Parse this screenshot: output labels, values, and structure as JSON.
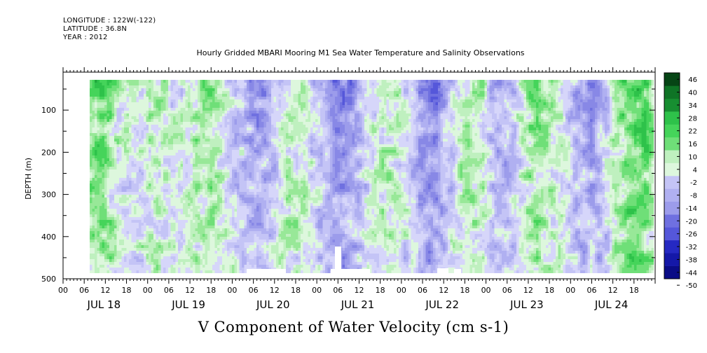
{
  "header": {
    "longitude": "LONGITUDE : 122W(-122)",
    "latitude": "LATITUDE : 36.8N",
    "year": "YEAR : 2012"
  },
  "colors": {
    "positive": [
      "#ddf7dd",
      "#bff0bf",
      "#98e898",
      "#6fdf78",
      "#45d45a",
      "#2ec24a",
      "#20a83c",
      "#178e31",
      "#0f7426",
      "#0a5c1d",
      "#064515"
    ],
    "negative": [
      "#d6d6fa",
      "#c4c4f6",
      "#b0b0f1",
      "#9c9ceb",
      "#8888e6",
      "#6f70e0",
      "#5557da",
      "#3b3ed0",
      "#2529c2",
      "#1418a8",
      "#0a0c86",
      "#04045c"
    ]
  },
  "chart_data": {
    "type": "heatmap",
    "title": "Hourly Gridded MBARI Mooring M1 Sea Water Temperature and Salinity Observations",
    "xlabel": "V Component of Water Velocity (cm s-1)",
    "ylabel": "DEPTH (m)",
    "y_reversed": true,
    "ylim": [
      500,
      10
    ],
    "y_ticks": [
      100,
      200,
      300,
      400,
      500
    ],
    "y_data_range": [
      15,
      485
    ],
    "x_day_labels": [
      "JUL 18",
      "JUL 19",
      "JUL 20",
      "JUL 21",
      "JUL 22",
      "JUL 23",
      "JUL 24"
    ],
    "x_hour_labels": [
      "00",
      "06",
      "12",
      "18"
    ],
    "x_range": [
      "JUL 18 00:00",
      "JUL 24 23:00"
    ],
    "x_data_start": "JUL 18 06:00",
    "colorbar": {
      "levels": [
        -50,
        -44,
        -38,
        -32,
        -26,
        -20,
        -14,
        -8,
        -2,
        4,
        10,
        16,
        22,
        28,
        34,
        40,
        46
      ],
      "labels": [
        "46",
        "40",
        "34",
        "28",
        "22",
        "16",
        "10",
        "4",
        "-2",
        "-8",
        "-14",
        "-20",
        "-26",
        "-32",
        "-38",
        "-44",
        "-50"
      ]
    },
    "pattern_notes": "Alternating green (northward, positive) and blue (southward, negative) vertical bands; strongest positive values near surface on Jul 18, Jul 23 and Jul 24."
  }
}
